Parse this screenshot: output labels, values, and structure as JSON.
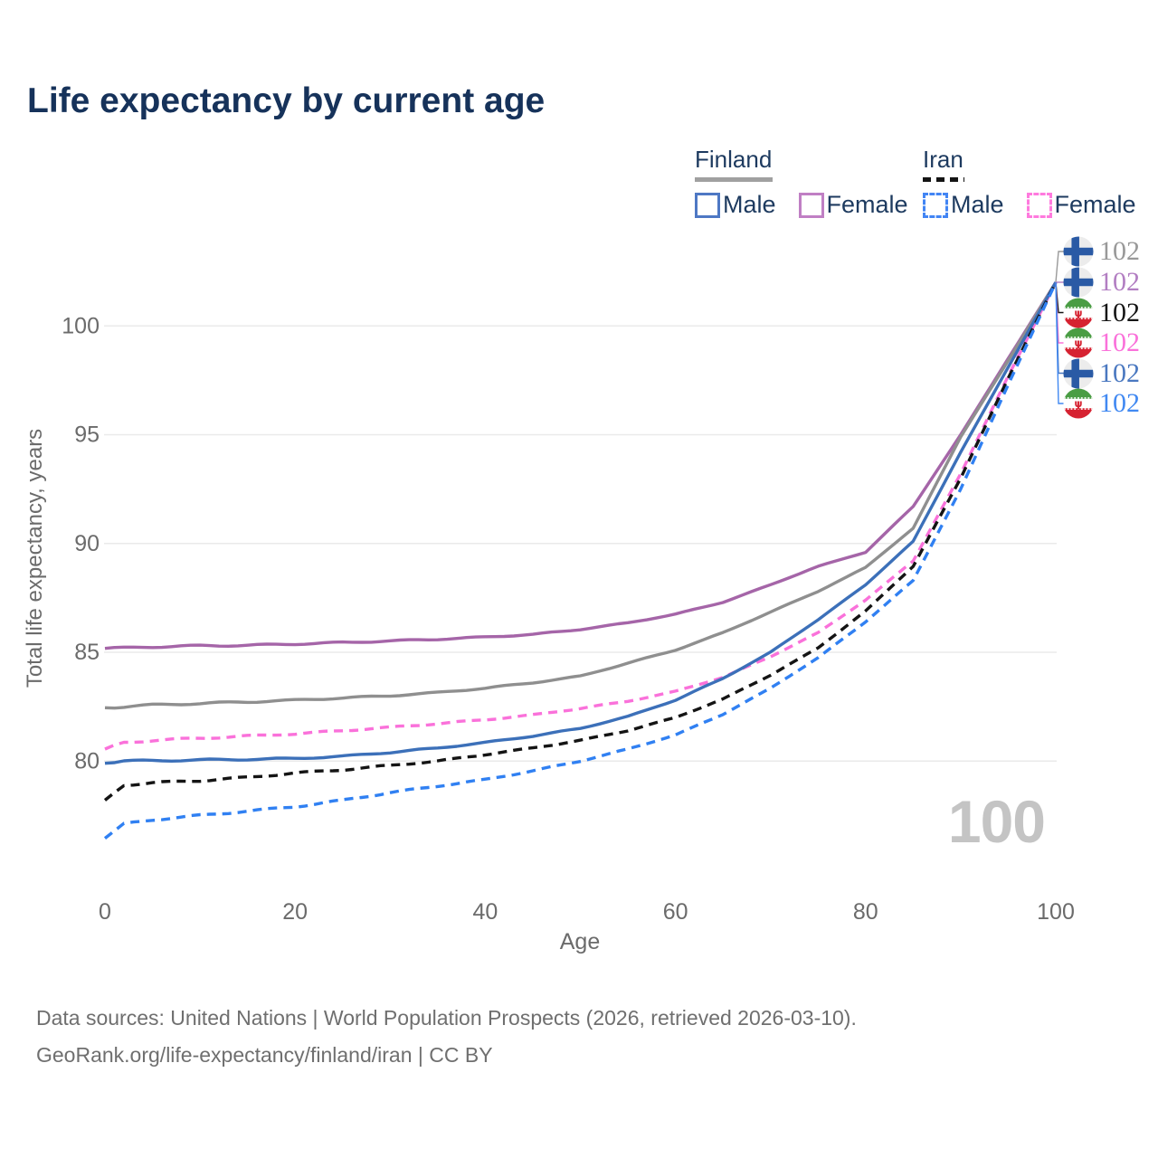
{
  "title": "Life expectancy by current age",
  "legend": {
    "groups": [
      {
        "name": "Finland",
        "line_style": "solid",
        "total_line_color": "#8f8f8f",
        "items": [
          {
            "label": "Male",
            "color": "#3c70b9"
          },
          {
            "label": "Female",
            "color": "#a565a8"
          }
        ]
      },
      {
        "name": "Iran",
        "line_style": "dashed",
        "total_line_color": "#141414",
        "items": [
          {
            "label": "Male",
            "color": "#3080f2"
          },
          {
            "label": "Female",
            "color": "#fa71da"
          }
        ]
      }
    ]
  },
  "chart_data": {
    "type": "line",
    "title": "Life expectancy by current age",
    "xlabel": "Age",
    "ylabel": "Total life expectancy, years",
    "x_ticks": [
      0,
      20,
      40,
      60,
      80,
      100
    ],
    "y_ticks": [
      80,
      85,
      90,
      95,
      100
    ],
    "xlim": [
      0,
      100
    ],
    "ylim": [
      76,
      103
    ],
    "grid": "horizontal",
    "x": [
      0,
      2,
      5,
      10,
      15,
      20,
      25,
      30,
      35,
      40,
      45,
      50,
      55,
      60,
      65,
      70,
      75,
      80,
      85,
      90,
      95,
      100
    ],
    "series": [
      {
        "id": "finland-female",
        "name": "Finland Female",
        "color": "#a565a8",
        "dash": "solid",
        "values": [
          85.18,
          85.2,
          85.25,
          85.3,
          85.32,
          85.38,
          85.45,
          85.52,
          85.6,
          85.7,
          85.82,
          86.05,
          86.35,
          86.75,
          87.3,
          88.1,
          88.95,
          89.6,
          91.7,
          95.0,
          98.5,
          102
        ]
      },
      {
        "id": "finland-total",
        "name": "Finland Both sexes",
        "color": "#8f8f8f",
        "dash": "solid",
        "values": [
          82.45,
          82.5,
          82.58,
          82.65,
          82.72,
          82.8,
          82.9,
          83.0,
          83.15,
          83.35,
          83.6,
          83.9,
          84.5,
          85.1,
          85.9,
          86.85,
          87.8,
          88.9,
          90.7,
          94.9,
          98.4,
          102
        ]
      },
      {
        "id": "iran-female",
        "name": "Iran Female",
        "color": "#fa71da",
        "dash": "dashed",
        "values": [
          80.55,
          80.85,
          80.95,
          81.05,
          81.15,
          81.25,
          81.4,
          81.55,
          81.72,
          81.9,
          82.12,
          82.42,
          82.75,
          83.2,
          83.85,
          84.8,
          85.9,
          87.4,
          89.2,
          93.2,
          97.7,
          102
        ]
      },
      {
        "id": "finland-male",
        "name": "Finland Male",
        "color": "#3c70b9",
        "dash": "solid",
        "values": [
          79.9,
          80.0,
          80.02,
          80.05,
          80.08,
          80.12,
          80.22,
          80.4,
          80.6,
          80.85,
          81.15,
          81.5,
          82.05,
          82.8,
          83.8,
          85.0,
          86.5,
          88.1,
          90.1,
          94.2,
          98.1,
          102
        ]
      },
      {
        "id": "iran-total",
        "name": "Iran Both sexes",
        "color": "#141414",
        "dash": "dashed",
        "values": [
          78.2,
          78.9,
          79.0,
          79.1,
          79.25,
          79.45,
          79.6,
          79.8,
          80.0,
          80.3,
          80.6,
          80.95,
          81.4,
          82.0,
          82.85,
          83.95,
          85.2,
          86.9,
          88.95,
          93.0,
          97.6,
          102
        ]
      },
      {
        "id": "iran-male",
        "name": "Iran Male",
        "color": "#3080f2",
        "dash": "dashed",
        "values": [
          76.45,
          77.1,
          77.3,
          77.5,
          77.7,
          77.9,
          78.2,
          78.55,
          78.85,
          79.15,
          79.55,
          80.0,
          80.55,
          81.2,
          82.15,
          83.35,
          84.75,
          86.4,
          88.3,
          92.5,
          97.3,
          102
        ]
      }
    ],
    "legend_position": "top-right",
    "end_age": 100,
    "end_value": 102
  },
  "end_labels": [
    {
      "flag": "finland",
      "series": "Finland Both sexes",
      "value": "102",
      "color": "#999999"
    },
    {
      "flag": "finland",
      "series": "Finland Female",
      "value": "102",
      "color": "#b27ec2"
    },
    {
      "flag": "iran",
      "series": "Iran Both sexes",
      "value": "102",
      "color": "#151515"
    },
    {
      "flag": "iran",
      "series": "Iran Female",
      "value": "102",
      "color": "#fa71da"
    },
    {
      "flag": "finland",
      "series": "Finland Male",
      "value": "102",
      "color": "#4a78c0"
    },
    {
      "flag": "iran",
      "series": "Iran Male",
      "value": "102",
      "color": "#4189f2"
    }
  ],
  "watermark": "100",
  "footer": {
    "line1": "Data sources: United Nations | World Population Prospects (2026, retrieved 2026-03-10).",
    "line2": "GeoRank.org/life-expectancy/finland/iran | CC BY"
  }
}
